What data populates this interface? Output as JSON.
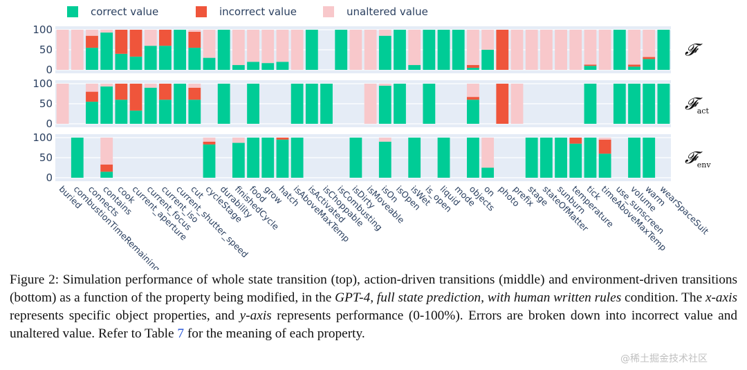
{
  "chart_data": {
    "type": "stacked-bar",
    "legend": [
      {
        "key": "correct",
        "label": "correct value",
        "color": "#00cc96"
      },
      {
        "key": "incorrect",
        "label": "incorrect value",
        "color": "#ef553b"
      },
      {
        "key": "unaltered",
        "label": "unaltered value",
        "color": "#f8c8cb"
      }
    ],
    "legend_placement": "top-left",
    "grid": true,
    "plot_background": "#e5ecf6",
    "categories": [
      "buried",
      "combustionTimeRemaining",
      "connects",
      "contains",
      "cook",
      "current_aperture",
      "current_focus",
      "current_iso",
      "current_shutter_speed",
      "cut",
      "cycleStage",
      "durability",
      "finishedCycle",
      "food",
      "grow",
      "hatch",
      "isAboveMaxTemp",
      "isActivated",
      "isChoppable",
      "isCombusting",
      "isDirty",
      "isMoveable",
      "isOn",
      "isOpen",
      "isWet",
      "is_open",
      "liquid",
      "mode",
      "objects",
      "on",
      "photo",
      "prefix",
      "stage",
      "stateOfMatter",
      "sunburn",
      "temperature",
      "tick",
      "timeAboveMaxTemp",
      "use_sunscreen",
      "volume",
      "warm",
      "wearSpaceSuit"
    ],
    "ylim": [
      0,
      100
    ],
    "yticks": [
      0,
      50,
      100
    ],
    "panels": [
      {
        "label": "𝓕",
        "correct": [
          0,
          0,
          55,
          93,
          40,
          33,
          60,
          60,
          100,
          55,
          30,
          100,
          12,
          20,
          17,
          20,
          0,
          100,
          null,
          100,
          0,
          0,
          85,
          100,
          12,
          100,
          100,
          100,
          5,
          50,
          0,
          0,
          0,
          0,
          0,
          0,
          10,
          0,
          100,
          8,
          27,
          100
        ],
        "incorrect": [
          0,
          0,
          30,
          0,
          60,
          67,
          0,
          40,
          0,
          40,
          0,
          0,
          0,
          0,
          0,
          0,
          0,
          0,
          null,
          0,
          0,
          0,
          0,
          0,
          0,
          0,
          0,
          0,
          7,
          0,
          100,
          0,
          0,
          0,
          0,
          0,
          3,
          0,
          0,
          5,
          5,
          0
        ],
        "unaltered": [
          100,
          100,
          15,
          7,
          0,
          0,
          40,
          0,
          0,
          5,
          70,
          0,
          88,
          80,
          83,
          80,
          100,
          0,
          null,
          0,
          100,
          100,
          15,
          0,
          88,
          0,
          0,
          0,
          88,
          50,
          0,
          100,
          100,
          100,
          100,
          100,
          87,
          100,
          0,
          87,
          68,
          0
        ]
      },
      {
        "label": "𝓕act",
        "correct": [
          0,
          null,
          55,
          93,
          60,
          33,
          90,
          60,
          100,
          60,
          null,
          100,
          null,
          100,
          null,
          null,
          100,
          100,
          100,
          null,
          null,
          0,
          95,
          100,
          null,
          100,
          null,
          null,
          60,
          null,
          0,
          0,
          null,
          null,
          null,
          null,
          100,
          null,
          100,
          100,
          100,
          100
        ],
        "incorrect": [
          0,
          null,
          25,
          0,
          40,
          67,
          0,
          40,
          0,
          30,
          null,
          0,
          null,
          0,
          null,
          null,
          0,
          0,
          0,
          null,
          null,
          0,
          0,
          0,
          null,
          0,
          null,
          null,
          7,
          null,
          100,
          0,
          null,
          null,
          null,
          null,
          0,
          null,
          0,
          0,
          0,
          0
        ],
        "unaltered": [
          100,
          null,
          20,
          7,
          0,
          0,
          10,
          0,
          0,
          10,
          null,
          0,
          null,
          0,
          null,
          null,
          0,
          0,
          0,
          null,
          null,
          100,
          5,
          0,
          null,
          0,
          null,
          null,
          33,
          null,
          0,
          100,
          null,
          null,
          null,
          null,
          0,
          null,
          0,
          0,
          0,
          0
        ]
      },
      {
        "label": "𝓕env",
        "correct": [
          null,
          100,
          null,
          15,
          null,
          null,
          null,
          null,
          null,
          null,
          83,
          null,
          87,
          100,
          100,
          95,
          100,
          null,
          null,
          null,
          100,
          null,
          90,
          null,
          100,
          null,
          100,
          null,
          100,
          25,
          null,
          null,
          100,
          100,
          100,
          85,
          100,
          60,
          null,
          100,
          100,
          null
        ],
        "incorrect": [
          null,
          0,
          null,
          18,
          null,
          null,
          null,
          null,
          null,
          null,
          7,
          null,
          0,
          0,
          0,
          5,
          0,
          null,
          null,
          null,
          0,
          null,
          0,
          null,
          0,
          null,
          0,
          null,
          0,
          0,
          null,
          null,
          0,
          0,
          0,
          15,
          0,
          35,
          null,
          0,
          0,
          null
        ],
        "unaltered": [
          null,
          0,
          null,
          67,
          null,
          null,
          null,
          null,
          null,
          null,
          10,
          null,
          13,
          0,
          0,
          0,
          0,
          null,
          null,
          null,
          0,
          null,
          10,
          null,
          0,
          null,
          0,
          null,
          0,
          75,
          null,
          null,
          0,
          0,
          0,
          0,
          0,
          5,
          null,
          0,
          0,
          null
        ]
      }
    ]
  },
  "caption": {
    "p1": "Figure 2:  Simulation performance of whole state transition (top), action-driven transitions (middle) and environment-driven transitions (bottom) as a function of the property being modified, in the ",
    "p2": "GPT-4, full state prediction, with human written rules",
    "p3": " condition. The ",
    "p4": "x-axis",
    "p5": " represents specific object properties, and ",
    "p6": "y-axis",
    "p7": " represents performance (0-100%). Errors are broken down into incorrect value and unaltered value. Refer to Table ",
    "p8": "7",
    "p9": " for the meaning of each property."
  },
  "watermark": "@稀土掘金技术社区"
}
